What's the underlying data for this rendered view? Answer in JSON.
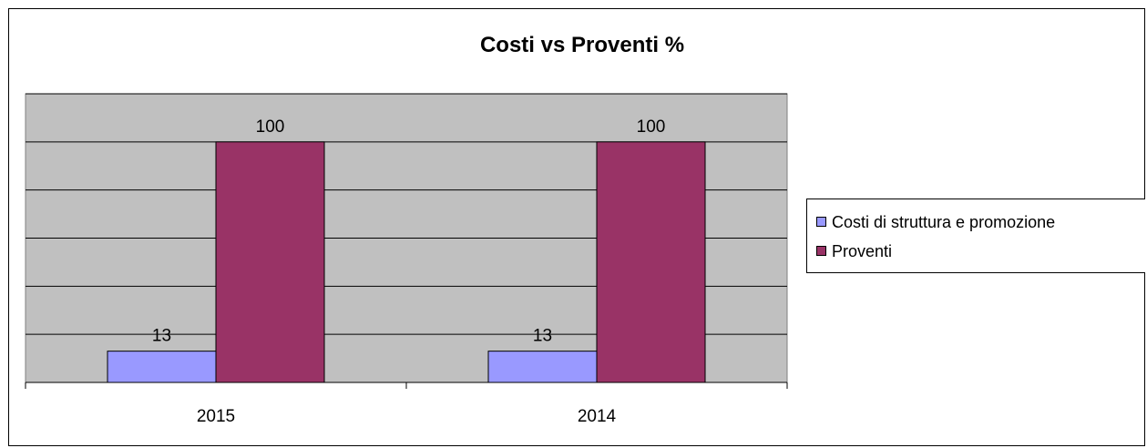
{
  "chart_data": {
    "type": "bar",
    "title": "Costi vs Proventi %",
    "categories": [
      "2015",
      "2014"
    ],
    "series": [
      {
        "name": "Costi di struttura e promozione",
        "values": [
          13,
          13
        ],
        "color": "#9999FF"
      },
      {
        "name": "Proventi",
        "values": [
          100,
          100
        ],
        "color": "#993366"
      }
    ],
    "ylim": [
      0,
      120
    ],
    "y_tick_step": 20,
    "grid": true,
    "plot_background": "#C0C0C0",
    "data_labels": true,
    "legend_position": "right"
  },
  "legend": {
    "items": [
      {
        "label": "Costi di struttura e promozione",
        "color": "#9999FF"
      },
      {
        "label": "Proventi",
        "color": "#993366"
      }
    ]
  }
}
